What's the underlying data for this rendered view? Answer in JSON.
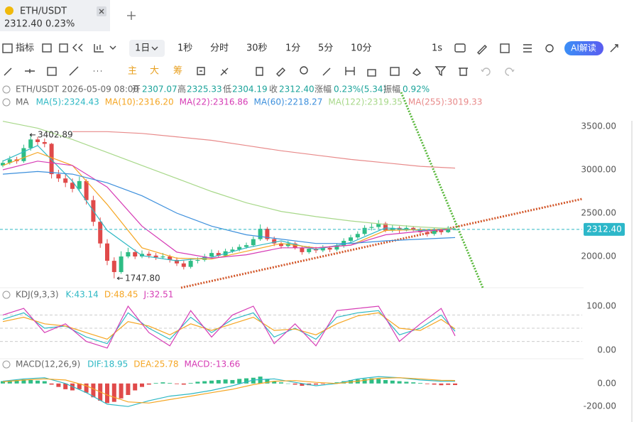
{
  "tab": {
    "symbol": "ETH/USDT",
    "price": "2312.40",
    "change": "0.23%"
  },
  "toolbar": {
    "indicator": "指标",
    "intervals": [
      "1日",
      "1秒",
      "分时",
      "30秒",
      "1分",
      "5分",
      "10分",
      "1s"
    ],
    "ai": "AI解读",
    "tools": [
      "主",
      "大",
      "筹"
    ]
  },
  "info": {
    "symbol": "ETH/USDT",
    "time": "2026-05-09 08:00",
    "open_label": "开",
    "open": "2307.07",
    "high_label": "高",
    "high": "2325.33",
    "low_label": "低",
    "low": "2304.19",
    "close_label": "收",
    "close": "2312.40",
    "change_label": "涨幅",
    "change": "0.23%(5.34)",
    "amp_label": "振幅",
    "amp": "0.92%"
  },
  "chart_data": [
    {
      "type": "candlestick",
      "heading": "MA",
      "up_color": "#2ebd85",
      "down_color": "#e04a4a",
      "ylim": [
        1639.3,
        4016.4
      ],
      "yticks": [
        {
          "value": 3500,
          "label": "3500.00"
        },
        {
          "value": 3000,
          "label": "3000.00"
        },
        {
          "value": 2500,
          "label": "2500.00"
        },
        {
          "value": 2000,
          "label": "2000.00"
        }
      ],
      "last_price": {
        "value": 2312.4,
        "label": "2312.40"
      },
      "annotations": [
        {
          "value": 3402.89,
          "label": "3402.89"
        },
        {
          "value": 1747.8,
          "label": "1747.80"
        }
      ],
      "candles": [
        [
          3050,
          3110,
          3030,
          3080
        ],
        [
          3080,
          3160,
          3060,
          3120
        ],
        [
          3120,
          3150,
          3070,
          3100
        ],
        [
          3100,
          3290,
          3080,
          3250
        ],
        [
          3250,
          3402.89,
          3220,
          3350
        ],
        [
          3350,
          3380,
          3280,
          3320
        ],
        [
          3320,
          3360,
          3260,
          3300
        ],
        [
          3300,
          3310,
          2900,
          2950
        ],
        [
          2950,
          3000,
          2860,
          2900
        ],
        [
          2900,
          2960,
          2800,
          2850
        ],
        [
          2850,
          2900,
          2740,
          2780
        ],
        [
          2780,
          2920,
          2760,
          2870
        ],
        [
          2870,
          2890,
          2600,
          2650
        ],
        [
          2650,
          2700,
          2350,
          2400
        ],
        [
          2400,
          2450,
          2100,
          2150
        ],
        [
          2150,
          2200,
          1900,
          1950
        ],
        [
          1950,
          1990,
          1747.8,
          1820
        ],
        [
          1820,
          2060,
          1800,
          2000
        ],
        [
          2000,
          2100,
          1980,
          2050
        ],
        [
          2050,
          2080,
          1970,
          2000
        ],
        [
          2000,
          2070,
          1980,
          2030
        ],
        [
          2030,
          2060,
          1980,
          2010
        ],
        [
          2010,
          2040,
          1960,
          1990
        ],
        [
          1990,
          2040,
          1970,
          2000
        ],
        [
          2000,
          2020,
          1930,
          1960
        ],
        [
          1960,
          1990,
          1890,
          1920
        ],
        [
          1920,
          1950,
          1850,
          1880
        ],
        [
          1880,
          1980,
          1860,
          1950
        ],
        [
          1950,
          1990,
          1920,
          1960
        ],
        [
          1960,
          2030,
          1940,
          2000
        ],
        [
          2000,
          2080,
          1990,
          2040
        ],
        [
          2040,
          2070,
          1990,
          2010
        ],
        [
          2010,
          2090,
          2000,
          2060
        ],
        [
          2060,
          2110,
          2040,
          2080
        ],
        [
          2080,
          2140,
          2060,
          2110
        ],
        [
          2110,
          2160,
          2090,
          2130
        ],
        [
          2130,
          2230,
          2110,
          2200
        ],
        [
          2200,
          2370,
          2180,
          2320
        ],
        [
          2320,
          2340,
          2180,
          2200
        ],
        [
          2200,
          2230,
          2120,
          2150
        ],
        [
          2150,
          2170,
          2090,
          2120
        ],
        [
          2120,
          2180,
          2100,
          2150
        ],
        [
          2150,
          2170,
          2080,
          2100
        ],
        [
          2100,
          2120,
          2020,
          2050
        ],
        [
          2050,
          2120,
          2030,
          2090
        ],
        [
          2090,
          2110,
          2040,
          2070
        ],
        [
          2070,
          2130,
          2050,
          2100
        ],
        [
          2100,
          2120,
          2050,
          2080
        ],
        [
          2080,
          2150,
          2060,
          2120
        ],
        [
          2120,
          2210,
          2100,
          2180
        ],
        [
          2180,
          2250,
          2160,
          2220
        ],
        [
          2220,
          2290,
          2200,
          2260
        ],
        [
          2260,
          2360,
          2240,
          2330
        ],
        [
          2330,
          2380,
          2300,
          2340
        ],
        [
          2340,
          2420,
          2320,
          2380
        ],
        [
          2380,
          2400,
          2280,
          2300
        ],
        [
          2300,
          2360,
          2280,
          2330
        ],
        [
          2330,
          2350,
          2270,
          2300
        ],
        [
          2300,
          2360,
          2290,
          2330
        ],
        [
          2330,
          2350,
          2290,
          2310
        ],
        [
          2310,
          2330,
          2250,
          2280
        ],
        [
          2280,
          2300,
          2230,
          2260
        ],
        [
          2260,
          2330,
          2240,
          2300
        ],
        [
          2300,
          2320,
          2250,
          2280
        ],
        [
          2280,
          2350,
          2270,
          2330
        ],
        [
          2307.07,
          2325.33,
          2304.19,
          2312.4
        ]
      ],
      "x": [
        0,
        5,
        10,
        15,
        20,
        25,
        30,
        35,
        40,
        45,
        50,
        55,
        60,
        65
      ],
      "series": [
        {
          "name": "MA(5):2324.43",
          "color": "#2eb8c4",
          "values": [
            3100,
            3280,
            2870,
            2300,
            2010,
            1950,
            1990,
            2100,
            2180,
            2080,
            2160,
            2330,
            2300,
            2324.43
          ]
        },
        {
          "name": "MA(10):2316.20",
          "color": "#f5a623",
          "values": [
            3050,
            3200,
            3050,
            2600,
            2100,
            1980,
            1970,
            2060,
            2150,
            2100,
            2130,
            2300,
            2310,
            2316.2
          ]
        },
        {
          "name": "MA(22):2316.86",
          "color": "#d63bb5",
          "values": [
            3000,
            3100,
            3050,
            2800,
            2350,
            2050,
            1980,
            2020,
            2100,
            2100,
            2130,
            2250,
            2290,
            2316.86
          ]
        },
        {
          "name": "MA(60):2218.27",
          "color": "#3c8fdc",
          "values": [
            2950,
            2980,
            2950,
            2850,
            2700,
            2500,
            2350,
            2250,
            2200,
            2150,
            2150,
            2180,
            2200,
            2218.27
          ]
        },
        {
          "name": "MA(122):2319.35",
          "color": "#a8d88a",
          "values": [
            3560,
            3480,
            3350,
            3200,
            3050,
            2900,
            2750,
            2620,
            2520,
            2460,
            2410,
            2370,
            2340,
            2319.35
          ]
        },
        {
          "name": "MA(255):3019.33",
          "color": "#e88a8a",
          "values": [
            null,
            null,
            3440,
            3440,
            3420,
            3380,
            3340,
            3280,
            3220,
            3170,
            3120,
            3080,
            3040,
            3019.33
          ]
        }
      ]
    },
    {
      "type": "line",
      "heading": "KDJ(9,3,3)",
      "ylim": [
        -19.35,
        141.94
      ],
      "yticks": [
        {
          "value": 100,
          "label": "100.00"
        },
        {
          "value": 0,
          "label": "0.00"
        }
      ],
      "levels": [
        80,
        50,
        20
      ],
      "x": [
        0,
        3,
        6,
        9,
        12,
        15,
        18,
        21,
        24,
        27,
        30,
        33,
        36,
        39,
        42,
        45,
        48,
        51,
        54,
        57,
        60,
        63,
        65
      ],
      "series": [
        {
          "name": "K:43.14",
          "color": "#2eb8c4",
          "values": [
            70,
            85,
            50,
            55,
            30,
            15,
            85,
            50,
            25,
            75,
            40,
            70,
            85,
            30,
            50,
            25,
            75,
            85,
            90,
            35,
            50,
            80,
            43.14
          ]
        },
        {
          "name": "D:48.45",
          "color": "#f5a623",
          "values": [
            65,
            75,
            60,
            55,
            40,
            25,
            65,
            55,
            35,
            60,
            45,
            60,
            75,
            45,
            48,
            35,
            60,
            78,
            85,
            50,
            45,
            70,
            48.45
          ]
        },
        {
          "name": "J:32.51",
          "color": "#d63bb5",
          "values": [
            80,
            95,
            40,
            60,
            20,
            5,
            100,
            40,
            10,
            90,
            30,
            80,
            100,
            15,
            60,
            10,
            90,
            95,
            100,
            20,
            60,
            95,
            32.51
          ]
        }
      ]
    },
    {
      "type": "macd",
      "heading": "MACD(12,26,9)",
      "up_color": "#2ebd85",
      "down_color": "#e04a4a",
      "ylim": [
        -335,
        215
      ],
      "yticks": [
        {
          "value": 0,
          "label": "0.00"
        },
        {
          "value": -200,
          "label": "-200.00"
        }
      ],
      "histogram": [
        20,
        25,
        30,
        35,
        30,
        25,
        20,
        -10,
        -30,
        -50,
        -60,
        -50,
        -80,
        -120,
        -150,
        -170,
        -160,
        -130,
        -100,
        -60,
        -30,
        -10,
        5,
        10,
        5,
        -5,
        -10,
        5,
        15,
        20,
        25,
        30,
        35,
        30,
        40,
        45,
        50,
        60,
        40,
        20,
        10,
        0,
        -10,
        -20,
        -15,
        -10,
        -5,
        5,
        10,
        20,
        30,
        35,
        40,
        45,
        40,
        30,
        25,
        20,
        15,
        10,
        5,
        -5,
        -10,
        -15,
        -12,
        -13.66
      ],
      "histogram_name": "MACD:-13.66",
      "x": [
        0,
        3,
        6,
        9,
        12,
        15,
        18,
        21,
        24,
        27,
        30,
        33,
        36,
        39,
        42,
        45,
        48,
        51,
        54,
        57,
        60,
        63,
        65
      ],
      "series": [
        {
          "name": "DIF:18.95",
          "color": "#2eb8c4",
          "values": [
            20,
            40,
            50,
            0,
            -80,
            -180,
            -200,
            -150,
            -110,
            -90,
            -60,
            -20,
            30,
            40,
            10,
            -20,
            0,
            40,
            60,
            50,
            30,
            20,
            18.95
          ]
        },
        {
          "name": "DEA:25.78",
          "color": "#f5a623",
          "values": [
            15,
            30,
            40,
            30,
            -20,
            -100,
            -160,
            -170,
            -140,
            -110,
            -80,
            -50,
            -10,
            20,
            25,
            10,
            0,
            20,
            45,
            50,
            40,
            28,
            25.78
          ]
        }
      ]
    }
  ]
}
